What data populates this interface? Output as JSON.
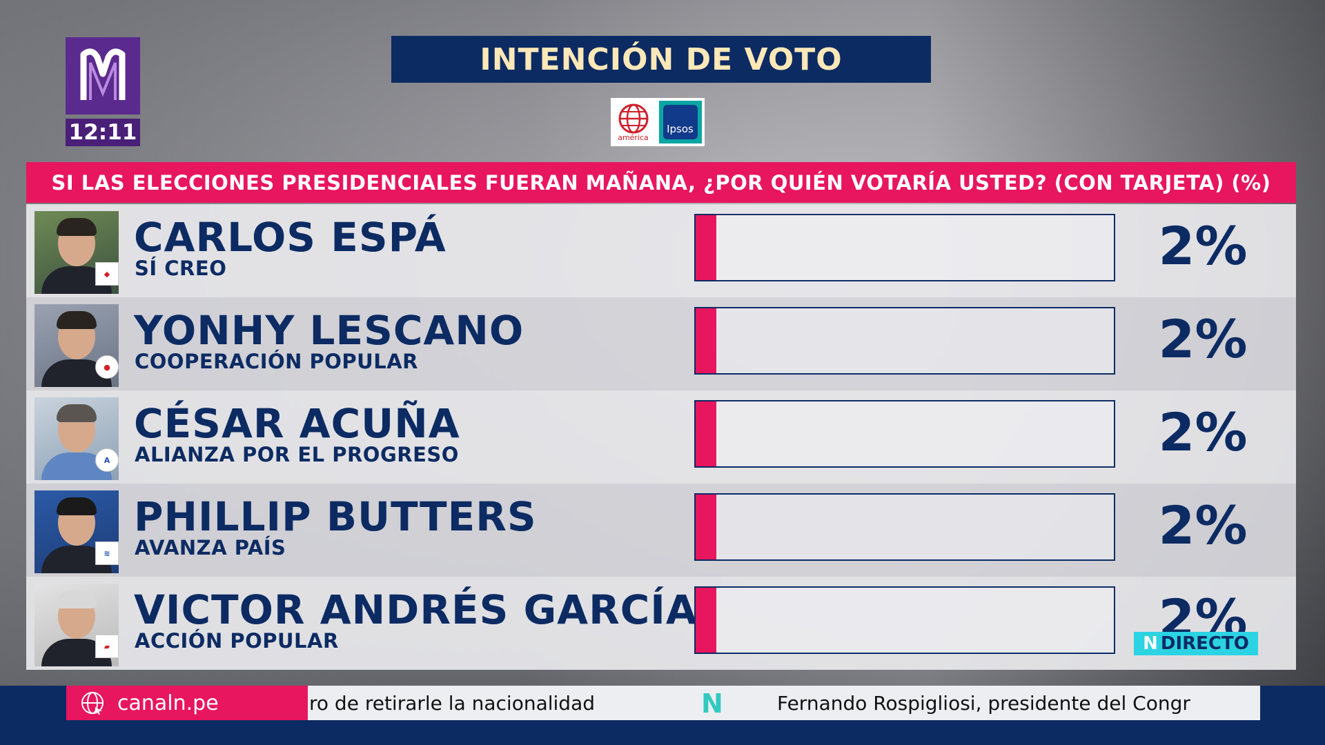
{
  "channel": {
    "time": "12:11"
  },
  "title": "INTENCIÓN DE VOTO",
  "sponsors": {
    "america": "américa",
    "ipsos": "Ipsos"
  },
  "question": "SI LAS ELECCIONES PRESIDENCIALES FUERAN MAÑANA, ¿POR QUIÉN VOTARÍA USTED? (CON TARJETA) (%)",
  "candidates": [
    {
      "name": "CARLOS ESPÁ",
      "party": "SÍ CREO",
      "value_label": "2%"
    },
    {
      "name": "YONHY LESCANO",
      "party": "COOPERACIÓN POPULAR",
      "value_label": "2%"
    },
    {
      "name": "CÉSAR ACUÑA",
      "party": "ALIANZA POR EL PROGRESO",
      "value_label": "2%"
    },
    {
      "name": "PHILLIP BUTTERS",
      "party": "AVANZA PAÍS",
      "value_label": "2%"
    },
    {
      "name": "VICTOR ANDRÉS GARCÍA",
      "party": "ACCIÓN POPULAR",
      "value_label": "2%"
    }
  ],
  "chart_data": {
    "type": "bar",
    "title": "INTENCIÓN DE VOTO",
    "subtitle": "SI LAS ELECCIONES PRESIDENCIALES FUERAN MAÑANA, ¿POR QUIÉN VOTARÍA USTED? (CON TARJETA) (%)",
    "categories": [
      "CARLOS ESPÁ",
      "YONHY LESCANO",
      "CÉSAR ACUÑA",
      "PHILLIP BUTTERS",
      "VICTOR ANDRÉS GARCÍA"
    ],
    "values": [
      2,
      2,
      2,
      2,
      2
    ],
    "ylim": [
      0,
      40
    ],
    "orientation": "horizontal",
    "colors": {
      "bar": "#e8155f",
      "frame": "#0d2b63",
      "text": "#0d2b63"
    }
  },
  "directo": {
    "label": "DIRECTO",
    "mark": "N"
  },
  "ticker": {
    "site": "canaln.pe",
    "text1": "ro de retirarle la nacionalidad",
    "separator": "N",
    "text2": "Fernando Rospigliosi, presidente del Congr"
  }
}
